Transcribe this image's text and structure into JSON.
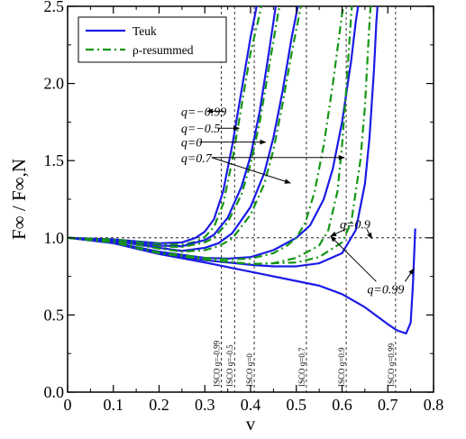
{
  "chart_data": {
    "type": "line",
    "xlabel": "v",
    "ylabel": "F∞ / F∞,N",
    "xlim": [
      0,
      0.8
    ],
    "ylim": [
      0,
      2.5
    ],
    "x_ticks": [
      0,
      0.1,
      0.2,
      0.3,
      0.4,
      0.5,
      0.6,
      0.7,
      0.8
    ],
    "x_tick_labels": [
      "0",
      "0.1",
      "0.2",
      "0.3",
      "0.4",
      "0.5",
      "0.6",
      "0.7",
      "0.8"
    ],
    "y_ticks": [
      0,
      0.5,
      1.0,
      1.5,
      2.0,
      2.5
    ],
    "y_tick_labels": [
      "0.0",
      "0.5",
      "1.0",
      "1.5",
      "2.0",
      "2.5"
    ],
    "reference_line_y": 1.0,
    "legend": {
      "placement": "top-left",
      "entries": [
        {
          "label": "Teuk",
          "color": "#1a1ae6",
          "style": "solid"
        },
        {
          "label": "ρ-resummed",
          "color": "#159615",
          "style": "dash-dot"
        }
      ]
    },
    "series": [
      {
        "name": "Teuk",
        "q": "-0.99",
        "x": [
          0,
          0.1,
          0.2,
          0.25,
          0.28,
          0.3,
          0.32,
          0.34,
          0.36,
          0.38,
          0.4,
          0.42
        ],
        "y": [
          1.0,
          0.99,
          0.965,
          0.97,
          1.0,
          1.04,
          1.12,
          1.3,
          1.6,
          1.95,
          2.3,
          2.6
        ]
      },
      {
        "name": "ρ-resummed",
        "q": "-0.99",
        "x": [
          0,
          0.1,
          0.2,
          0.25,
          0.28,
          0.3,
          0.32,
          0.34,
          0.36,
          0.38,
          0.4,
          0.42,
          0.43
        ],
        "y": [
          1.0,
          0.99,
          0.96,
          0.955,
          0.975,
          1.005,
          1.07,
          1.22,
          1.5,
          1.85,
          2.2,
          2.45,
          2.6
        ]
      },
      {
        "name": "Teuk",
        "q": "-0.5",
        "x": [
          0,
          0.1,
          0.2,
          0.25,
          0.3,
          0.32,
          0.35,
          0.38,
          0.4,
          0.42,
          0.44,
          0.46
        ],
        "y": [
          1.0,
          0.985,
          0.95,
          0.945,
          0.985,
          1.02,
          1.13,
          1.33,
          1.53,
          1.82,
          2.2,
          2.6
        ]
      },
      {
        "name": "ρ-resummed",
        "q": "-0.5",
        "x": [
          0,
          0.1,
          0.2,
          0.25,
          0.3,
          0.32,
          0.35,
          0.38,
          0.4,
          0.42,
          0.44,
          0.46,
          0.47
        ],
        "y": [
          1.0,
          0.985,
          0.945,
          0.94,
          0.97,
          1.0,
          1.1,
          1.28,
          1.48,
          1.75,
          2.1,
          2.45,
          2.6
        ]
      },
      {
        "name": "Teuk",
        "q": "0",
        "x": [
          0,
          0.1,
          0.2,
          0.25,
          0.3,
          0.33,
          0.36,
          0.4,
          0.43,
          0.45,
          0.47,
          0.49,
          0.51
        ],
        "y": [
          1.0,
          0.98,
          0.935,
          0.915,
          0.935,
          0.965,
          1.03,
          1.2,
          1.42,
          1.65,
          1.95,
          2.3,
          2.6
        ]
      },
      {
        "name": "ρ-resummed",
        "q": "0",
        "x": [
          0,
          0.1,
          0.2,
          0.25,
          0.3,
          0.33,
          0.36,
          0.4,
          0.43,
          0.45,
          0.47,
          0.49,
          0.51,
          0.52
        ],
        "y": [
          1.0,
          0.98,
          0.93,
          0.91,
          0.92,
          0.945,
          0.995,
          1.15,
          1.35,
          1.57,
          1.87,
          2.2,
          2.5,
          2.6
        ]
      },
      {
        "name": "Teuk",
        "q": "0.7",
        "x": [
          0,
          0.1,
          0.2,
          0.3,
          0.35,
          0.4,
          0.45,
          0.5,
          0.53,
          0.56,
          0.58,
          0.6,
          0.62,
          0.63,
          0.64
        ],
        "y": [
          1.0,
          0.97,
          0.91,
          0.87,
          0.865,
          0.875,
          0.92,
          1.0,
          1.08,
          1.25,
          1.45,
          1.75,
          2.15,
          2.4,
          2.6
        ]
      },
      {
        "name": "ρ-resummed",
        "q": "0.7",
        "x": [
          0,
          0.1,
          0.2,
          0.3,
          0.35,
          0.4,
          0.45,
          0.48,
          0.5,
          0.52,
          0.54,
          0.56,
          0.58,
          0.6,
          0.61
        ],
        "y": [
          1.0,
          0.97,
          0.905,
          0.87,
          0.86,
          0.865,
          0.9,
          0.95,
          1.0,
          1.1,
          1.3,
          1.6,
          2.0,
          2.45,
          2.6
        ]
      },
      {
        "name": "Teuk",
        "q": "0.9",
        "x": [
          0,
          0.1,
          0.2,
          0.3,
          0.4,
          0.45,
          0.5,
          0.55,
          0.6,
          0.63,
          0.65,
          0.66,
          0.67,
          0.675,
          0.68
        ],
        "y": [
          1.0,
          0.97,
          0.9,
          0.855,
          0.825,
          0.815,
          0.815,
          0.835,
          0.9,
          1.05,
          1.35,
          1.65,
          2.1,
          2.4,
          2.6
        ]
      },
      {
        "name": "ρ-resummed",
        "q": "0.9",
        "x": [
          0,
          0.1,
          0.2,
          0.3,
          0.4,
          0.45,
          0.5,
          0.55,
          0.57,
          0.59,
          0.6,
          0.61,
          0.62,
          0.625
        ],
        "y": [
          1.0,
          0.97,
          0.9,
          0.86,
          0.83,
          0.835,
          0.87,
          0.95,
          1.05,
          1.3,
          1.6,
          2.0,
          2.45,
          2.6
        ]
      },
      {
        "name": "Teuk",
        "q": "0.99",
        "x": [
          0,
          0.1,
          0.2,
          0.3,
          0.4,
          0.5,
          0.55,
          0.6,
          0.65,
          0.7,
          0.72,
          0.74,
          0.75,
          0.755,
          0.76
        ],
        "y": [
          1.0,
          0.965,
          0.895,
          0.84,
          0.78,
          0.72,
          0.69,
          0.635,
          0.55,
          0.44,
          0.4,
          0.38,
          0.45,
          0.7,
          1.06
        ]
      },
      {
        "name": "ρ-resummed",
        "q": "0.99",
        "x": [
          0,
          0.1,
          0.2,
          0.3,
          0.4,
          0.5,
          0.55,
          0.6,
          0.62,
          0.64,
          0.65,
          0.66,
          0.665
        ],
        "y": [
          1.0,
          0.97,
          0.9,
          0.86,
          0.83,
          0.84,
          0.875,
          0.97,
          1.1,
          1.5,
          1.85,
          2.4,
          2.6
        ]
      }
    ],
    "isco_lines": [
      {
        "x": 0.336,
        "label": "ISCO q=-0.99"
      },
      {
        "x": 0.365,
        "label": "ISCO q=-0.5"
      },
      {
        "x": 0.408,
        "label": "ISCO q=0"
      },
      {
        "x": 0.522,
        "label": "ISCO q=0.7"
      },
      {
        "x": 0.609,
        "label": "ISCO q=0.9"
      },
      {
        "x": 0.717,
        "label": "ISCO q=0.99"
      }
    ],
    "annotations": [
      {
        "text": "q=−0.99",
        "x": 0.248,
        "y": 1.82,
        "arrow_to": [
          0.305,
          1.82
        ]
      },
      {
        "text": "q=−0.5",
        "x": 0.248,
        "y": 1.71,
        "arrow_to": [
          0.375,
          1.71
        ]
      },
      {
        "text": "q=0",
        "x": 0.248,
        "y": 1.62,
        "arrow_to": [
          0.433,
          1.62
        ]
      },
      {
        "text": "q=0.7",
        "x": 0.248,
        "y": 1.52,
        "arrow_to": [
          0.605,
          1.52
        ]
      },
      {
        "text": "q=0.7",
        "x": 0.248,
        "y": 1.52,
        "arrow_to": [
          0.487,
          1.355
        ]
      },
      {
        "text": "q=0.9",
        "x": 0.595,
        "y": 1.09,
        "arrow_to": [
          0.665,
          0.995
        ]
      },
      {
        "text": "q=0.9",
        "x": 0.595,
        "y": 1.09,
        "arrow_to": [
          0.575,
          1.01
        ]
      },
      {
        "text": "q=0.99",
        "x": 0.655,
        "y": 0.67,
        "arrow_to": [
          0.757,
          0.8
        ]
      },
      {
        "text": "q=0.99",
        "x": 0.655,
        "y": 0.67,
        "arrow_to": [
          0.575,
          1.01
        ]
      }
    ]
  }
}
